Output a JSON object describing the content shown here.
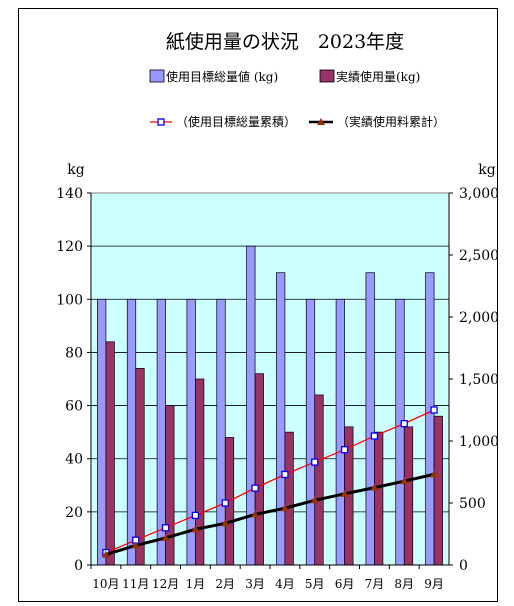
{
  "chart_data": {
    "type": "bar",
    "title": "紙使用量の状況　2023年度",
    "categories": [
      "10月",
      "11月",
      "12月",
      "1月",
      "2月",
      "3月",
      "4月",
      "5月",
      "6月",
      "7月",
      "8月",
      "9月"
    ],
    "y_left": {
      "unit": "kg",
      "range": [
        0,
        140
      ],
      "ticks": [
        "0",
        "20",
        "40",
        "60",
        "80",
        "100",
        "120",
        "140"
      ]
    },
    "y_right": {
      "unit": "kg",
      "range": [
        0,
        3000
      ],
      "ticks": [
        "0",
        "500",
        "1,000",
        "1,500",
        "2,000",
        "2,500",
        "3,000"
      ]
    },
    "grid": true,
    "legend_position": "top",
    "series": [
      {
        "name": "使用目標総量値 (kg)",
        "type": "bar",
        "axis": "left",
        "color": "#9999ff",
        "values": [
          100,
          100,
          100,
          100,
          100,
          120,
          110,
          100,
          100,
          110,
          100,
          110
        ]
      },
      {
        "name": "実績使用量(kg)",
        "type": "bar",
        "axis": "left",
        "color": "#993366",
        "values": [
          84,
          74,
          60,
          70,
          48,
          72,
          50,
          64,
          52,
          50,
          52,
          56
        ]
      },
      {
        "name": "（使用目標総量累積）",
        "type": "line",
        "axis": "right",
        "color": "#ff0000",
        "marker_color": "#0000ff",
        "values": [
          100,
          200,
          300,
          400,
          500,
          620,
          730,
          830,
          930,
          1040,
          1140,
          1250
        ]
      },
      {
        "name": "（実績使用料累計）",
        "type": "line",
        "axis": "right",
        "color": "#000000",
        "marker_color": "#993300",
        "values": [
          84,
          158,
          218,
          288,
          336,
          408,
          458,
          522,
          574,
          624,
          676,
          732
        ]
      }
    ]
  }
}
